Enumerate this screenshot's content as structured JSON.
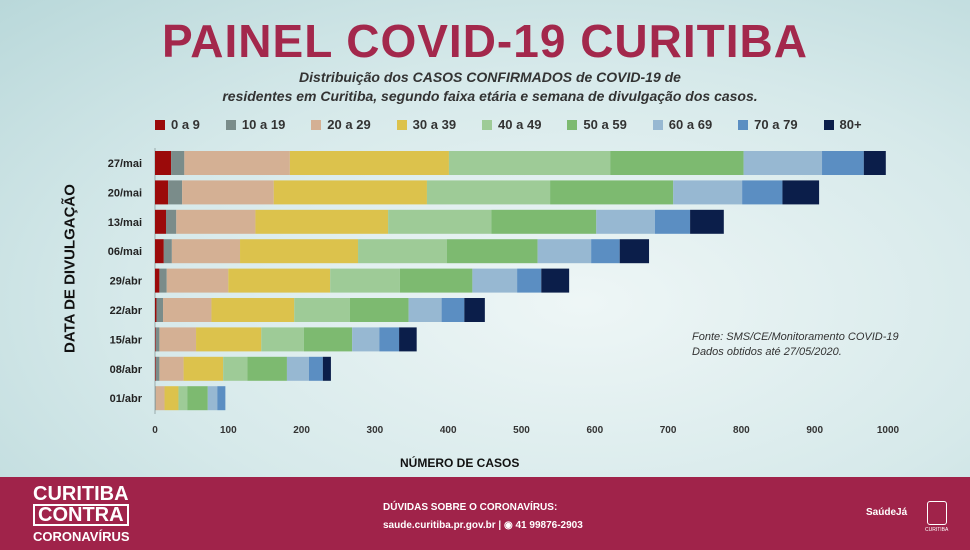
{
  "title": "PAINEL COVID-19 CURITIBA",
  "subtitle": [
    "Distribuição dos CASOS CONFIRMADOS de COVID-19 de",
    "residentes em Curitiba, segundo faixa etária e semana de divulgação dos casos."
  ],
  "source": [
    "Fonte: SMS/CE/Monitoramento COVID-19",
    "Dados obtidos até 27/05/2020."
  ],
  "chart_data": {
    "type": "bar",
    "orientation": "horizontal",
    "stacked": true,
    "xlabel": "NÚMERO DE CASOS",
    "ylabel": "DATA DE DIVULGAÇÃO",
    "xlim": [
      0,
      1000
    ],
    "xticks": [
      0,
      100,
      200,
      300,
      400,
      500,
      600,
      700,
      800,
      900,
      1000
    ],
    "categories": [
      "27/mai",
      "20/mai",
      "13/mai",
      "06/mai",
      "29/abr",
      "22/abr",
      "15/abr",
      "08/abr",
      "01/abr"
    ],
    "series": [
      {
        "name": "0 a 9",
        "color": "#9b0a0a",
        "values": [
          22,
          18,
          15,
          12,
          6,
          2,
          1,
          1,
          0
        ]
      },
      {
        "name": "10 a 19",
        "color": "#7a8c8a",
        "values": [
          18,
          19,
          14,
          11,
          10,
          9,
          5,
          5,
          1
        ]
      },
      {
        "name": "20 a 29",
        "color": "#d4b094",
        "values": [
          144,
          125,
          108,
          93,
          84,
          66,
          50,
          33,
          12
        ]
      },
      {
        "name": "30 a 39",
        "color": "#dcc24c",
        "values": [
          217,
          209,
          181,
          161,
          139,
          113,
          89,
          54,
          19
        ]
      },
      {
        "name": "40 a 49",
        "color": "#9ecb97",
        "values": [
          220,
          168,
          141,
          121,
          95,
          76,
          58,
          33,
          12
        ]
      },
      {
        "name": "50 a 59",
        "color": "#7dba70",
        "values": [
          182,
          168,
          143,
          124,
          99,
          80,
          66,
          54,
          28
        ]
      },
      {
        "name": "60 a 69",
        "color": "#97b8d2",
        "values": [
          107,
          94,
          80,
          73,
          61,
          45,
          37,
          30,
          13
        ]
      },
      {
        "name": "70 a 79",
        "color": "#5b8ec2",
        "values": [
          57,
          55,
          48,
          39,
          33,
          31,
          27,
          19,
          11
        ]
      },
      {
        "name": "80+",
        "color": "#0b1e4a",
        "values": [
          30,
          50,
          46,
          40,
          38,
          28,
          24,
          11,
          0
        ]
      }
    ]
  },
  "footer": {
    "brand": [
      "CURITIBA",
      "CONTRA",
      "CORONAVÍRUS"
    ],
    "question": "DÚVIDAS SOBRE O CORONAVÍRUS:",
    "site": "saude.curitiba.pr.gov.br",
    "phone": "41 99876-2903",
    "saude_logo": "SaúdeJá",
    "city": "CURITIBA"
  }
}
